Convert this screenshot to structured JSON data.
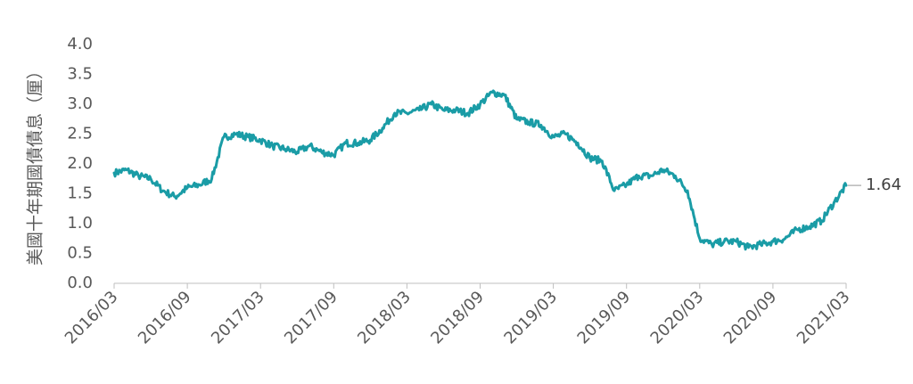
{
  "chart_data": {
    "type": "line",
    "ylabel": "美國十年期國債債息（厘）",
    "xlabel": "",
    "title": "",
    "ylim": [
      0.0,
      4.0
    ],
    "yticks": [
      "0.0",
      "0.5",
      "1.0",
      "1.5",
      "2.0",
      "2.5",
      "3.0",
      "3.5",
      "4.0"
    ],
    "xticks": [
      "2016/03",
      "2016/09",
      "2017/03",
      "2017/09",
      "2018/03",
      "2018/09",
      "2019/03",
      "2019/09",
      "2020/03",
      "2020/09",
      "2021/03"
    ],
    "x_start": "2016/03",
    "x_end": "2021/03",
    "grid": false,
    "legend": "none",
    "series": [
      {
        "color": "#1a9ca6",
        "x": [
          "2016/03",
          "2016/04",
          "2016/05",
          "2016/06",
          "2016/07",
          "2016/08",
          "2016/09",
          "2016/10",
          "2016/11",
          "2016/12",
          "2017/01",
          "2017/02",
          "2017/03",
          "2017/04",
          "2017/05",
          "2017/06",
          "2017/07",
          "2017/08",
          "2017/09",
          "2017/10",
          "2017/11",
          "2017/12",
          "2018/01",
          "2018/02",
          "2018/03",
          "2018/04",
          "2018/05",
          "2018/06",
          "2018/07",
          "2018/08",
          "2018/09",
          "2018/10",
          "2018/11",
          "2018/12",
          "2019/01",
          "2019/02",
          "2019/03",
          "2019/04",
          "2019/05",
          "2019/06",
          "2019/07",
          "2019/08",
          "2019/09",
          "2019/10",
          "2019/11",
          "2019/12",
          "2020/01",
          "2020/02",
          "2020/03",
          "2020/04",
          "2020/05",
          "2020/06",
          "2020/07",
          "2020/08",
          "2020/09",
          "2020/10",
          "2020/11",
          "2020/12",
          "2021/01",
          "2021/02",
          "2021/03"
        ],
        "values": [
          1.85,
          1.9,
          1.8,
          1.75,
          1.55,
          1.45,
          1.6,
          1.65,
          1.75,
          2.45,
          2.5,
          2.45,
          2.4,
          2.3,
          2.25,
          2.2,
          2.3,
          2.2,
          2.15,
          2.35,
          2.35,
          2.4,
          2.6,
          2.85,
          2.85,
          2.9,
          3.0,
          2.9,
          2.9,
          2.85,
          3.0,
          3.2,
          3.15,
          2.75,
          2.7,
          2.65,
          2.45,
          2.5,
          2.35,
          2.1,
          2.05,
          1.55,
          1.65,
          1.8,
          1.8,
          1.9,
          1.8,
          1.55,
          0.75,
          0.65,
          0.7,
          0.7,
          0.6,
          0.65,
          0.7,
          0.75,
          0.9,
          0.95,
          1.05,
          1.35,
          1.64
        ]
      }
    ],
    "annotations": [
      {
        "label": "1.64",
        "value": 1.64
      }
    ]
  }
}
